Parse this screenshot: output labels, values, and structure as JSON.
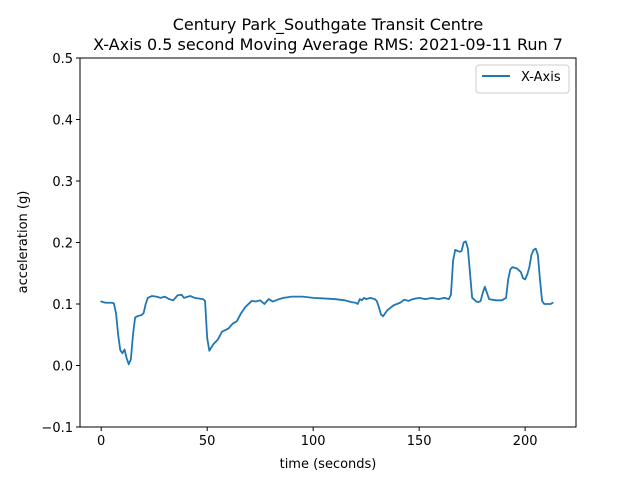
{
  "chart_data": {
    "type": "line",
    "title_line1": "Century Park_Southgate Transit Centre",
    "title_line2": "X-Axis 0.5 second Moving Average RMS: 2021-09-11 Run 7",
    "xlabel": "time (seconds)",
    "ylabel": "acceleration (g)",
    "xlim": [
      -10,
      224
    ],
    "ylim": [
      -0.1,
      0.5
    ],
    "xticks": [
      0,
      50,
      100,
      150,
      200
    ],
    "xtick_labels": [
      "0",
      "50",
      "100",
      "150",
      "200"
    ],
    "yticks": [
      -0.1,
      0.0,
      0.1,
      0.2,
      0.3,
      0.4,
      0.5
    ],
    "ytick_labels": [
      "−0.1",
      "0.0",
      "0.1",
      "0.2",
      "0.3",
      "0.4",
      "0.5"
    ],
    "grid": false,
    "legend_position": "top-right",
    "colors": {
      "line": "#1f77b4"
    },
    "series": [
      {
        "name": "X-Axis",
        "points": [
          [
            0,
            0.104
          ],
          [
            2,
            0.102
          ],
          [
            5,
            0.102
          ],
          [
            6,
            0.101
          ],
          [
            7,
            0.085
          ],
          [
            8,
            0.05
          ],
          [
            9,
            0.025
          ],
          [
            10,
            0.02
          ],
          [
            11,
            0.026
          ],
          [
            12,
            0.012
          ],
          [
            13,
            0.002
          ],
          [
            14,
            0.01
          ],
          [
            15,
            0.05
          ],
          [
            16,
            0.078
          ],
          [
            17,
            0.08
          ],
          [
            19,
            0.082
          ],
          [
            20,
            0.085
          ],
          [
            21,
            0.1
          ],
          [
            22,
            0.11
          ],
          [
            24,
            0.113
          ],
          [
            26,
            0.112
          ],
          [
            28,
            0.11
          ],
          [
            30,
            0.112
          ],
          [
            32,
            0.108
          ],
          [
            34,
            0.106
          ],
          [
            35,
            0.11
          ],
          [
            36,
            0.114
          ],
          [
            38,
            0.115
          ],
          [
            39,
            0.11
          ],
          [
            41,
            0.112
          ],
          [
            42,
            0.113
          ],
          [
            44,
            0.11
          ],
          [
            46,
            0.109
          ],
          [
            48,
            0.108
          ],
          [
            49,
            0.105
          ],
          [
            50,
            0.045
          ],
          [
            51,
            0.024
          ],
          [
            53,
            0.035
          ],
          [
            55,
            0.042
          ],
          [
            57,
            0.055
          ],
          [
            60,
            0.06
          ],
          [
            62,
            0.068
          ],
          [
            64,
            0.072
          ],
          [
            66,
            0.085
          ],
          [
            68,
            0.095
          ],
          [
            71,
            0.105
          ],
          [
            73,
            0.104
          ],
          [
            75,
            0.106
          ],
          [
            77,
            0.1
          ],
          [
            79,
            0.108
          ],
          [
            81,
            0.104
          ],
          [
            84,
            0.108
          ],
          [
            86,
            0.11
          ],
          [
            90,
            0.112
          ],
          [
            95,
            0.112
          ],
          [
            100,
            0.11
          ],
          [
            105,
            0.109
          ],
          [
            110,
            0.108
          ],
          [
            115,
            0.106
          ],
          [
            118,
            0.103
          ],
          [
            120,
            0.102
          ],
          [
            121,
            0.1
          ],
          [
            122,
            0.108
          ],
          [
            123,
            0.106
          ],
          [
            124,
            0.11
          ],
          [
            125,
            0.108
          ],
          [
            127,
            0.11
          ],
          [
            129,
            0.108
          ],
          [
            130,
            0.105
          ],
          [
            131,
            0.095
          ],
          [
            132,
            0.083
          ],
          [
            133,
            0.08
          ],
          [
            135,
            0.09
          ],
          [
            138,
            0.098
          ],
          [
            141,
            0.102
          ],
          [
            143,
            0.107
          ],
          [
            145,
            0.105
          ],
          [
            147,
            0.108
          ],
          [
            150,
            0.11
          ],
          [
            153,
            0.108
          ],
          [
            156,
            0.11
          ],
          [
            159,
            0.108
          ],
          [
            162,
            0.11
          ],
          [
            164,
            0.108
          ],
          [
            165,
            0.115
          ],
          [
            166,
            0.17
          ],
          [
            167,
            0.188
          ],
          [
            169,
            0.185
          ],
          [
            170,
            0.186
          ],
          [
            171,
            0.2
          ],
          [
            172,
            0.202
          ],
          [
            173,
            0.19
          ],
          [
            174,
            0.15
          ],
          [
            175,
            0.11
          ],
          [
            177,
            0.104
          ],
          [
            178,
            0.103
          ],
          [
            179,
            0.105
          ],
          [
            180,
            0.118
          ],
          [
            181,
            0.128
          ],
          [
            182,
            0.118
          ],
          [
            183,
            0.108
          ],
          [
            186,
            0.106
          ],
          [
            189,
            0.106
          ],
          [
            191,
            0.11
          ],
          [
            192,
            0.14
          ],
          [
            193,
            0.156
          ],
          [
            194,
            0.16
          ],
          [
            196,
            0.158
          ],
          [
            198,
            0.152
          ],
          [
            199,
            0.142
          ],
          [
            200,
            0.14
          ],
          [
            201,
            0.148
          ],
          [
            202,
            0.16
          ],
          [
            203,
            0.18
          ],
          [
            204,
            0.188
          ],
          [
            205,
            0.19
          ],
          [
            206,
            0.18
          ],
          [
            207,
            0.14
          ],
          [
            208,
            0.105
          ],
          [
            209,
            0.1
          ],
          [
            211,
            0.1
          ],
          [
            212,
            0.1
          ],
          [
            213,
            0.102
          ]
        ]
      }
    ]
  }
}
